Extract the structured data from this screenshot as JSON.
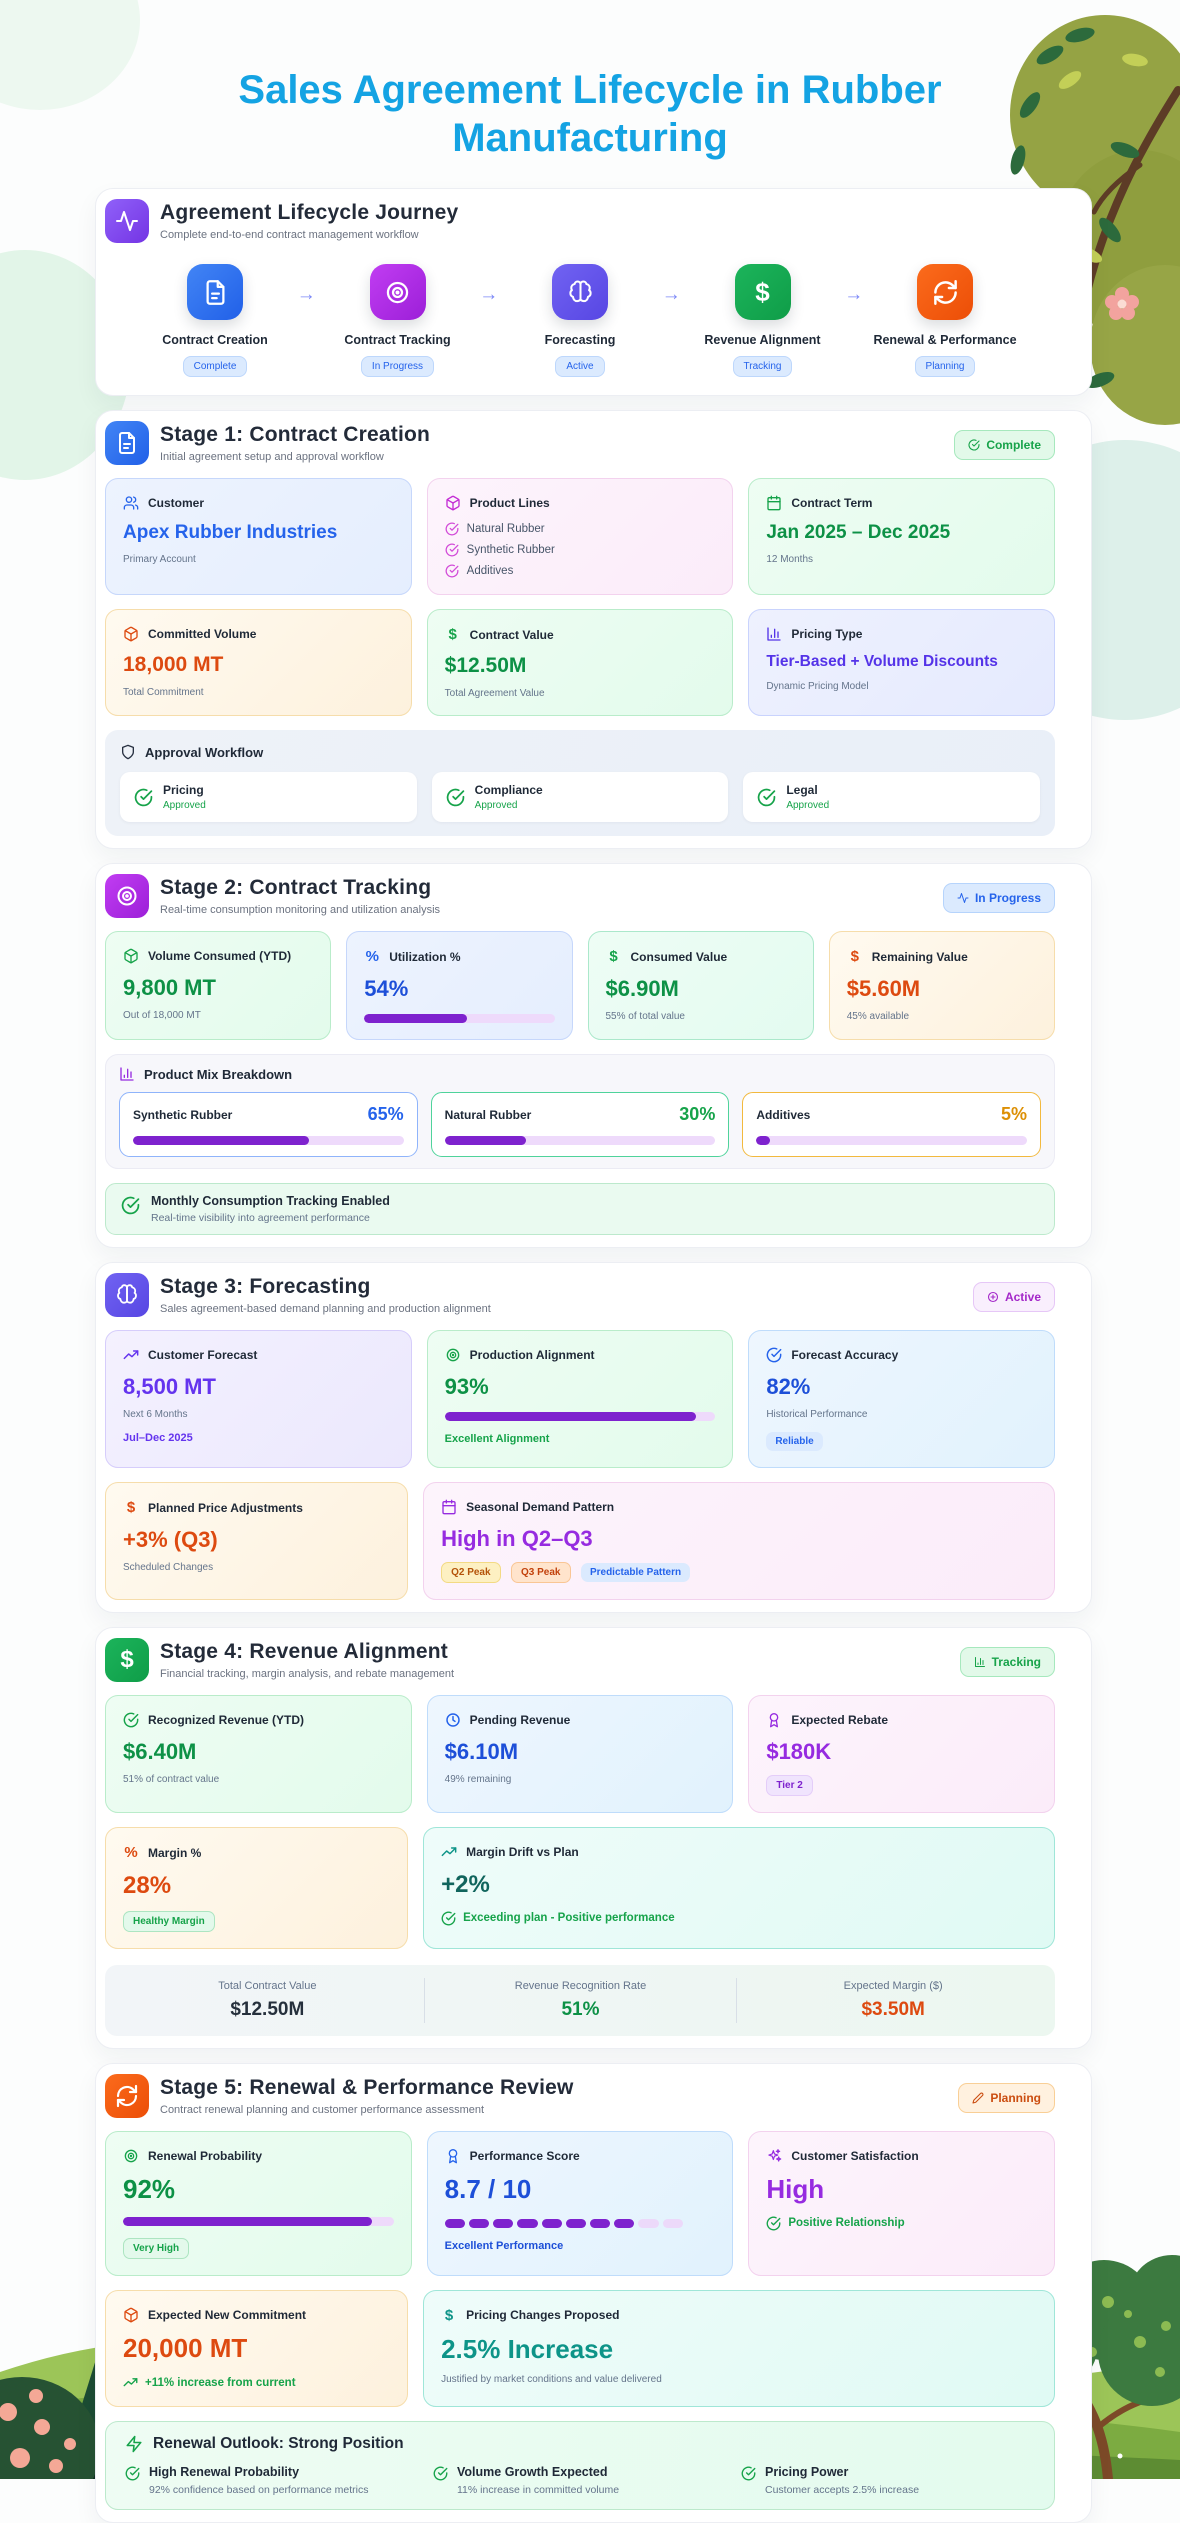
{
  "title": "Sales Agreement Lifecycle in Rubber Manufacturing",
  "colors": {
    "title_accent": "#14a3e3",
    "progress_fill": "#7e22ce",
    "progress_track": "#eedafb",
    "stage1_accent": "#2563eb",
    "stage2_accent": "#b434ee",
    "stage3_accent": "#5746e3",
    "stage4_accent": "#0f9d48",
    "stage5_accent": "#ec4e07"
  },
  "journey": {
    "title": "Agreement Lifecycle Journey",
    "subtitle": "Complete end-to-end contract management workflow",
    "steps": [
      {
        "label": "Contract Creation",
        "status": "Complete"
      },
      {
        "label": "Contract Tracking",
        "status": "In Progress"
      },
      {
        "label": "Forecasting",
        "status": "Active"
      },
      {
        "label": "Revenue Alignment",
        "status": "Tracking"
      },
      {
        "label": "Renewal & Performance",
        "status": "Planning"
      }
    ]
  },
  "stage1": {
    "title": "Stage 1: Contract Creation",
    "subtitle": "Initial agreement setup and approval workflow",
    "badge": "Complete",
    "customer": {
      "label": "Customer",
      "value": "Apex Rubber Industries",
      "sub": "Primary Account"
    },
    "product_lines": {
      "label": "Product Lines",
      "items": [
        "Natural Rubber",
        "Synthetic Rubber",
        "Additives"
      ]
    },
    "contract_term": {
      "label": "Contract Term",
      "value": "Jan 2025 – Dec 2025",
      "sub": "12 Months"
    },
    "committed_volume": {
      "label": "Committed Volume",
      "value": "18,000 MT",
      "sub": "Total Commitment"
    },
    "contract_value": {
      "label": "Contract Value",
      "value": "$12.50M",
      "sub": "Total Agreement Value"
    },
    "pricing_type": {
      "label": "Pricing Type",
      "value": "Tier-Based + Volume Discounts",
      "sub": "Dynamic Pricing Model"
    },
    "approval": {
      "label": "Approval Workflow",
      "items": [
        {
          "name": "Pricing",
          "status": "Approved"
        },
        {
          "name": "Compliance",
          "status": "Approved"
        },
        {
          "name": "Legal",
          "status": "Approved"
        }
      ]
    }
  },
  "stage2": {
    "title": "Stage 2: Contract Tracking",
    "subtitle": "Real-time consumption monitoring and utilization analysis",
    "badge": "In Progress",
    "volume_consumed": {
      "label": "Volume Consumed (YTD)",
      "value": "9,800 MT",
      "sub": "Out of 18,000 MT"
    },
    "utilization": {
      "label": "Utilization %",
      "value": "54%",
      "percent": 54
    },
    "consumed_value": {
      "label": "Consumed Value",
      "value": "$6.90M",
      "sub": "55% of total value"
    },
    "remaining_value": {
      "label": "Remaining Value",
      "value": "$5.60M",
      "sub": "45% available"
    },
    "product_mix": {
      "label": "Product Mix Breakdown",
      "items": [
        {
          "name": "Synthetic Rubber",
          "pct": "65%",
          "percent": 65
        },
        {
          "name": "Natural Rubber",
          "pct": "30%",
          "percent": 30
        },
        {
          "name": "Additives",
          "pct": "5%",
          "percent": 5
        }
      ]
    },
    "tracking_note": {
      "title": "Monthly Consumption Tracking Enabled",
      "sub": "Real-time visibility into agreement performance"
    }
  },
  "stage3": {
    "title": "Stage 3: Forecasting",
    "subtitle": "Sales agreement-based demand planning and production alignment",
    "badge": "Active",
    "customer_forecast": {
      "label": "Customer Forecast",
      "value": "8,500 MT",
      "sub": "Next 6 Months",
      "period": "Jul–Dec 2025"
    },
    "production_alignment": {
      "label": "Production Alignment",
      "value": "93%",
      "percent": 93,
      "note": "Excellent Alignment"
    },
    "forecast_accuracy": {
      "label": "Forecast Accuracy",
      "value": "82%",
      "sub": "Historical Performance",
      "badge": "Reliable"
    },
    "price_adjustments": {
      "label": "Planned Price Adjustments",
      "value": "+3% (Q3)",
      "sub": "Scheduled Changes"
    },
    "seasonal": {
      "label": "Seasonal Demand Pattern",
      "value": "High in Q2–Q3",
      "badges": [
        "Q2 Peak",
        "Q3 Peak",
        "Predictable Pattern"
      ]
    }
  },
  "stage4": {
    "title": "Stage 4: Revenue Alignment",
    "subtitle": "Financial tracking, margin analysis, and rebate management",
    "badge": "Tracking",
    "recognized": {
      "label": "Recognized Revenue (YTD)",
      "value": "$6.40M",
      "sub": "51% of contract value"
    },
    "pending": {
      "label": "Pending Revenue",
      "value": "$6.10M",
      "sub": "49% remaining"
    },
    "rebate": {
      "label": "Expected Rebate",
      "value": "$180K",
      "badge": "Tier 2"
    },
    "margin": {
      "label": "Margin %",
      "value": "28%",
      "badge": "Healthy Margin"
    },
    "drift": {
      "label": "Margin Drift vs Plan",
      "value": "+2%",
      "note": "Exceeding plan - Positive performance"
    },
    "summary": [
      {
        "label": "Total Contract Value",
        "value": "$12.50M"
      },
      {
        "label": "Revenue Recognition Rate",
        "value": "51%"
      },
      {
        "label": "Expected Margin ($)",
        "value": "$3.50M"
      }
    ]
  },
  "stage5": {
    "title": "Stage 5: Renewal & Performance Review",
    "subtitle": "Contract renewal planning and customer performance assessment",
    "badge": "Planning",
    "renewal_probability": {
      "label": "Renewal Probability",
      "value": "92%",
      "percent": 92,
      "badge": "Very High"
    },
    "performance_score": {
      "label": "Performance Score",
      "value": "8.7 / 10",
      "count": 10,
      "filled": 8,
      "note": "Excellent Performance"
    },
    "satisfaction": {
      "label": "Customer Satisfaction",
      "value": "High",
      "note": "Positive Relationship"
    },
    "new_commitment": {
      "label": "Expected New Commitment",
      "value": "20,000 MT",
      "note": "+11% increase from current"
    },
    "pricing_changes": {
      "label": "Pricing Changes Proposed",
      "value": "2.5% Increase",
      "sub": "Justified by market conditions and value delivered"
    },
    "outlook": {
      "title": "Renewal Outlook: Strong Position",
      "items": [
        {
          "title": "High Renewal Probability",
          "sub": "92% confidence based on performance metrics"
        },
        {
          "title": "Volume Growth Expected",
          "sub": "11% increase in committed volume"
        },
        {
          "title": "Pricing Power",
          "sub": "Customer accepts 2.5% increase"
        }
      ]
    }
  }
}
